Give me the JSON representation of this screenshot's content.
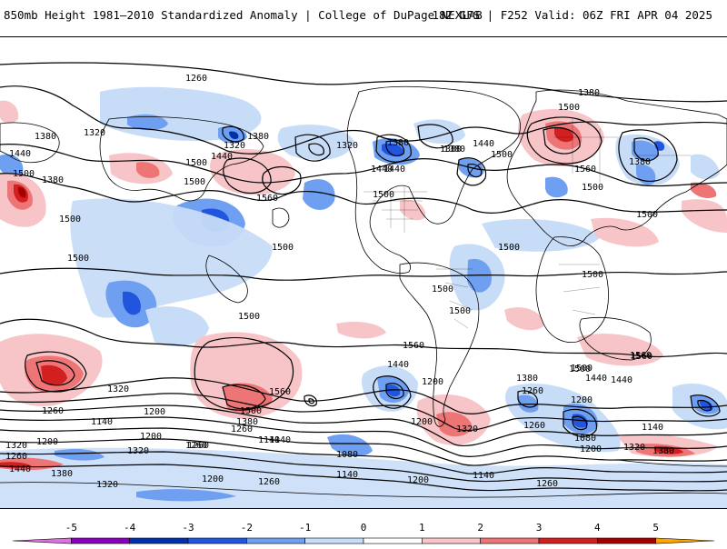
{
  "header": {
    "title_left": "850mb Height 1981–2010 Standardized Anomaly | College of DuPage NEXLAB",
    "title_right": "18Z GFS | F252 Valid: 06Z FRI APR 04 2025"
  },
  "colorbar": {
    "ticks": [
      "-5",
      "-4",
      "-3",
      "-2",
      "-1",
      "0",
      "1",
      "2",
      "3",
      "4",
      "5"
    ],
    "colors": [
      "#e070e0",
      "#8800bb",
      "#0030aa",
      "#2255dd",
      "#6f9ff0",
      "#c7dcf7",
      "#ffffff",
      "#f7c5c8",
      "#ee7575",
      "#d21f1f",
      "#a50000",
      "#ffa500"
    ]
  },
  "contour_labels": [
    "1260",
    "1380",
    "1320",
    "1440",
    "1500",
    "1320",
    "1380",
    "1440",
    "1500",
    "1560",
    "1500",
    "1500",
    "1500",
    "1500",
    "1380",
    "1320",
    "1440",
    "1380",
    "1500",
    "1500",
    "1440",
    "1380",
    "1500",
    "1560",
    "1500",
    "1380",
    "1500",
    "1500",
    "1500",
    "1500",
    "1500",
    "1500",
    "1560",
    "1560",
    "1560",
    "1500",
    "1440",
    "1320",
    "1200",
    "1260",
    "1500",
    "1140",
    "1380",
    "1320",
    "1200",
    "1260",
    "1140",
    "1080",
    "1200",
    "1260",
    "1320",
    "1440",
    "1380",
    "1260",
    "1320",
    "1200",
    "1260",
    "1140",
    "1200",
    "1140",
    "1260",
    "1200",
    "1440",
    "1380",
    "1200",
    "1260",
    "1140",
    "1080",
    "1200",
    "1320",
    "1380",
    "1440",
    "1500",
    "1560",
    "1140",
    "1260",
    "1380",
    "1440",
    "1380",
    "1320",
    "1260",
    "1200"
  ]
}
